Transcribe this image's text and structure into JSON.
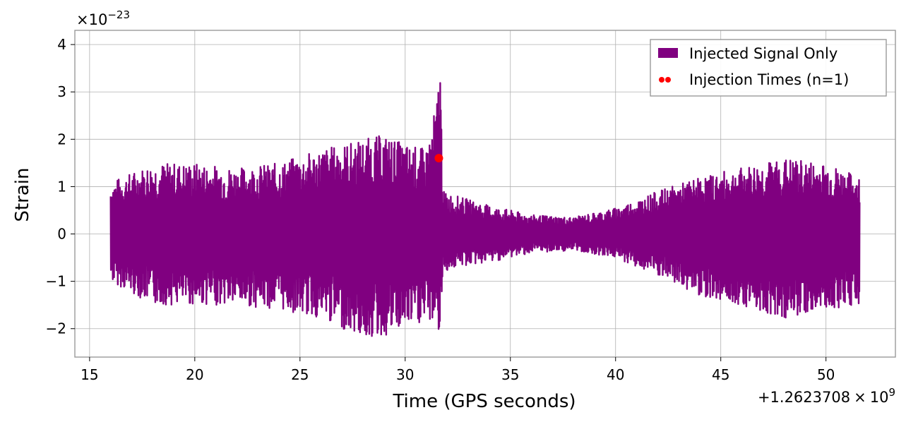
{
  "chart_data": {
    "type": "line",
    "xlabel": "Time (GPS seconds)",
    "ylabel": "Strain",
    "x_offset_label_prefix": "+1.2623708",
    "x_offset_label_times": "×",
    "x_offset_label_base": "10",
    "x_offset_label_exp": "9",
    "y_scale_label_prefix": "×10",
    "y_scale_label_exp": "−23",
    "xlim": [
      14.3,
      53.3
    ],
    "ylim": [
      -2.6,
      4.3
    ],
    "x_ticks": [
      15,
      20,
      25,
      30,
      35,
      40,
      45,
      50
    ],
    "x_tick_labels": [
      "15",
      "20",
      "25",
      "30",
      "35",
      "40",
      "45",
      "50"
    ],
    "y_ticks": [
      -2,
      -1,
      0,
      1,
      2,
      3,
      4
    ],
    "y_tick_labels": [
      "−2",
      "−1",
      "0",
      "1",
      "2",
      "3",
      "4"
    ],
    "grid": true,
    "legend_position": "top-right",
    "series": [
      {
        "name": "Injected Signal Only",
        "kind": "line",
        "color": "#800080",
        "x_range": [
          16.0,
          51.6
        ],
        "envelope": {
          "x": [
            16.0,
            18.0,
            20.0,
            22.0,
            24.0,
            26.0,
            28.0,
            29.0,
            30.0,
            31.0,
            31.5,
            31.65,
            31.8,
            32.5,
            34.0,
            36.0,
            38.0,
            40.0,
            42.0,
            44.0,
            46.0,
            48.0,
            50.0,
            51.6
          ],
          "upper": [
            1.1,
            1.5,
            1.5,
            1.4,
            1.5,
            1.8,
            2.0,
            2.1,
            1.9,
            1.8,
            2.8,
            4.0,
            0.9,
            0.8,
            0.6,
            0.4,
            0.35,
            0.55,
            0.9,
            1.2,
            1.4,
            1.6,
            1.5,
            1.2
          ],
          "lower": [
            -1.0,
            -1.5,
            -1.5,
            -1.5,
            -1.6,
            -1.8,
            -2.2,
            -2.2,
            -2.0,
            -1.9,
            -1.8,
            -2.3,
            -0.8,
            -0.7,
            -0.6,
            -0.4,
            -0.35,
            -0.5,
            -0.9,
            -1.3,
            -1.5,
            -1.8,
            -1.6,
            -1.5
          ]
        }
      },
      {
        "name": "Injection Times (n=1)",
        "kind": "scatter",
        "color": "#ff0000",
        "points": [
          [
            31.6,
            1.6
          ]
        ]
      }
    ]
  }
}
